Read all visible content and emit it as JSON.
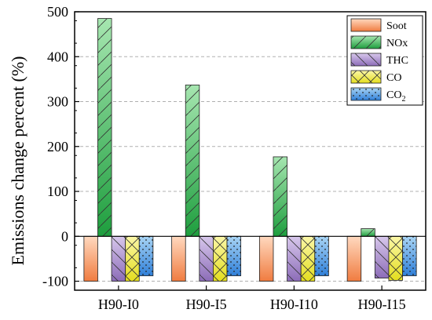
{
  "chart_data": {
    "type": "bar",
    "ylabel": "Emissions change percent (%)",
    "xlabel": "",
    "categories": [
      "H90-I0",
      "H90-I5",
      "H90-I10",
      "H90-I15"
    ],
    "ylim": [
      -120,
      500
    ],
    "yticks": [
      -100,
      0,
      100,
      200,
      300,
      400,
      500
    ],
    "grid": "horizontal dashed",
    "legend_placement": "top-right",
    "series": [
      {
        "name": "Soot",
        "legend_label": "Soot",
        "values": [
          -100,
          -100,
          -100,
          -100
        ],
        "color_top": "#ffd9bf",
        "color_bottom": "#f07c40",
        "pattern": "none"
      },
      {
        "name": "NOx",
        "legend_label": "NOx",
        "values": [
          485,
          337,
          177,
          17
        ],
        "color_top": "#a6e6b0",
        "color_bottom": "#1e9e3e",
        "pattern": "diag-right"
      },
      {
        "name": "THC",
        "legend_label": "THC",
        "values": [
          -100,
          -100,
          -100,
          -93
        ],
        "color_top": "#d8c8ec",
        "color_bottom": "#8c6cb8",
        "pattern": "diag-left"
      },
      {
        "name": "CO",
        "legend_label": "CO",
        "values": [
          -100,
          -100,
          -100,
          -98
        ],
        "color_top": "#fbf7a8",
        "color_bottom": "#e4de1e",
        "pattern": "cross"
      },
      {
        "name": "CO2",
        "legend_label": "CO",
        "legend_subscript": "2",
        "values": [
          -88,
          -88,
          -88,
          -88
        ],
        "color_top": "#a8d4f4",
        "color_bottom": "#2f7fd8",
        "pattern": "dots"
      }
    ]
  }
}
